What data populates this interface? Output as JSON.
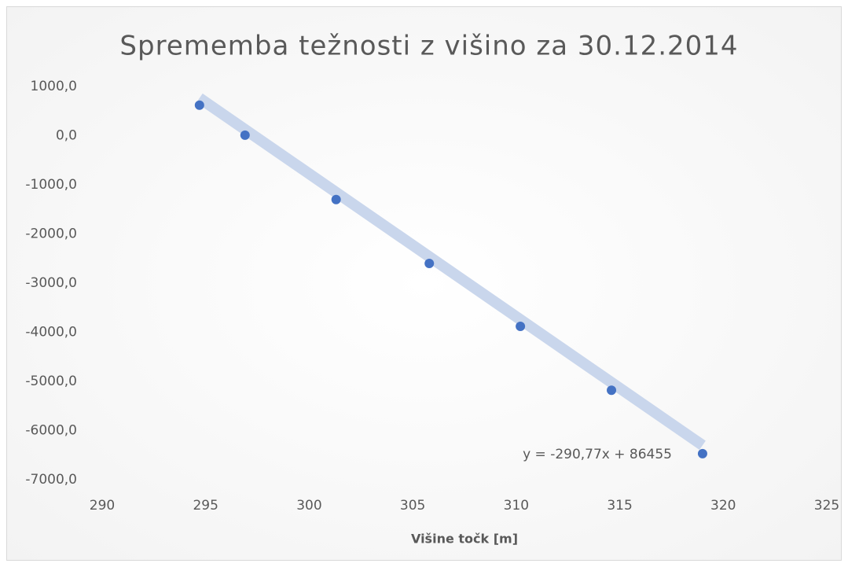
{
  "chart_data": {
    "type": "scatter",
    "title": "Sprememba težnosti z višino za 30.12.2014",
    "x_label": "Višine točk [m]",
    "x": [
      294.7,
      296.9,
      301.3,
      305.8,
      310.2,
      314.6,
      319.0
    ],
    "series": [
      {
        "color": "#4472c4",
        "values": [
          620,
          10,
          -1300,
          -2600,
          -3880,
          -5180,
          -6470
        ]
      }
    ],
    "trendline": {
      "slope": -290.77,
      "intercept": 86455,
      "label": "y = -290,77x + 86455",
      "color": "#c9d6ec"
    },
    "xlim": [
      290,
      325
    ],
    "xticks": [
      290,
      295,
      300,
      305,
      310,
      315,
      320,
      325
    ],
    "ylim": [
      -7000,
      1000
    ],
    "yticks": [
      {
        "value": 1000,
        "label": "1000,0"
      },
      {
        "value": 0,
        "label": "0,0"
      },
      {
        "value": -1000,
        "label": "-1000,0"
      },
      {
        "value": -2000,
        "label": "-2000,0"
      },
      {
        "value": -3000,
        "label": "-3000,0"
      },
      {
        "value": -4000,
        "label": "-4000,0"
      },
      {
        "value": -5000,
        "label": "-5000,0"
      },
      {
        "value": -6000,
        "label": "-6000,0"
      },
      {
        "value": -7000,
        "label": "-7000,0"
      }
    ],
    "grid": false
  }
}
